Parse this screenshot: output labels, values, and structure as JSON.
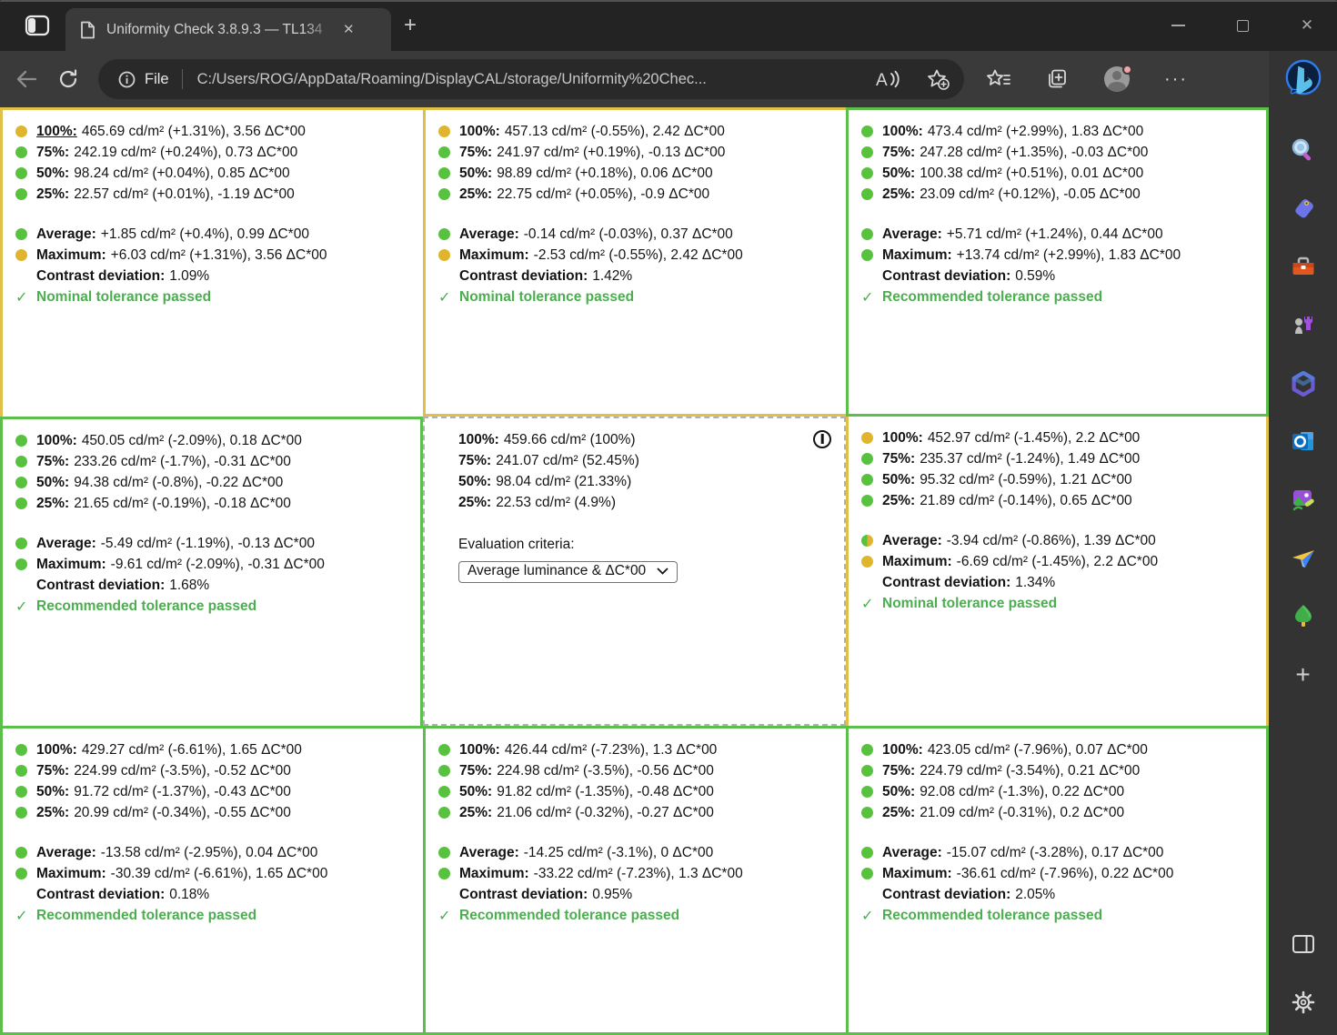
{
  "window": {
    "tab_title": "Uniformity Check 3.8.9.3 — TL134",
    "new_tab_label": "+",
    "controls": [
      "minimize",
      "maximize",
      "close"
    ]
  },
  "address_bar": {
    "scheme_label": "File",
    "url": "C:/Users/ROG/AppData/Roaming/DisplayCAL/storage/Uniformity%20Chec...",
    "more_options_glyph": "···"
  },
  "icons": {
    "titlebar": [
      "tab-workspaces-icon",
      "page-favicon-icon",
      "tab-close-icon",
      "new-tab-icon"
    ],
    "toolbar": [
      "back-icon",
      "refresh-icon",
      "info-icon",
      "read-aloud-icon",
      "add-favorite-icon",
      "favorites-icon",
      "collections-icon",
      "profile-avatar",
      "more-options-icon"
    ],
    "sidebar": [
      "bing-copilot-icon",
      "search-icon",
      "shopping-tag-icon",
      "toolbox-icon",
      "games-icon",
      "microsoft-365-icon",
      "outlook-icon",
      "image-creator-icon",
      "drop-icon",
      "tree-icon",
      "add-sidebar-item-icon",
      "sidebar-panel-icon",
      "settings-gear-icon"
    ]
  },
  "colors": {
    "tolerance_green": "#5CBF4C",
    "tolerance_yellow": "#E0C04A",
    "dot_green": "#58C23E",
    "dot_yellow": "#E0B52E",
    "status_green": "#4BAE4F"
  },
  "report": {
    "unit": "cd/m²",
    "evaluation": {
      "label": "Evaluation criteria:",
      "selected": "Average luminance & ΔC*00"
    },
    "panels": [
      {
        "position": "top-left",
        "border_color": "yellow",
        "reference": false,
        "measurements": [
          {
            "dot": "yellow",
            "label": "100%:",
            "text": "465.69 cd/m² (+1.31%), 3.56 ΔC*00",
            "underline": true
          },
          {
            "dot": "green",
            "label": "75%:",
            "text": "242.19 cd/m² (+0.24%), 0.73 ΔC*00"
          },
          {
            "dot": "green",
            "label": "50%:",
            "text": "98.24 cd/m² (+0.04%), 0.85 ΔC*00"
          },
          {
            "dot": "green",
            "label": "25%:",
            "text": "22.57 cd/m² (+0.01%), -1.19 ΔC*00"
          }
        ],
        "summary": [
          {
            "dot": "green",
            "label": "Average:",
            "text": "+1.85 cd/m² (+0.4%), 0.99 ΔC*00"
          },
          {
            "dot": "yellow",
            "label": "Maximum:",
            "text": "+6.03 cd/m² (+1.31%), 3.56 ΔC*00"
          },
          {
            "dot": null,
            "label": "Contrast deviation:",
            "text": "1.09%"
          }
        ],
        "status": "Nominal tolerance passed"
      },
      {
        "position": "top-center",
        "border_color": "yellow",
        "reference": false,
        "measurements": [
          {
            "dot": "yellow",
            "label": "100%:",
            "text": "457.13 cd/m² (-0.55%), 2.42 ΔC*00"
          },
          {
            "dot": "green",
            "label": "75%:",
            "text": "241.97 cd/m² (+0.19%), -0.13 ΔC*00"
          },
          {
            "dot": "green",
            "label": "50%:",
            "text": "98.89 cd/m² (+0.18%), 0.06 ΔC*00"
          },
          {
            "dot": "green",
            "label": "25%:",
            "text": "22.75 cd/m² (+0.05%), -0.9 ΔC*00"
          }
        ],
        "summary": [
          {
            "dot": "green",
            "label": "Average:",
            "text": "-0.14 cd/m² (-0.03%), 0.37 ΔC*00"
          },
          {
            "dot": "yellow",
            "label": "Maximum:",
            "text": "-2.53 cd/m² (-0.55%), 2.42 ΔC*00"
          },
          {
            "dot": null,
            "label": "Contrast deviation:",
            "text": "1.42%"
          }
        ],
        "status": "Nominal tolerance passed"
      },
      {
        "position": "top-right",
        "border_color": "green",
        "reference": false,
        "measurements": [
          {
            "dot": "green",
            "label": "100%:",
            "text": "473.4 cd/m² (+2.99%), 1.83 ΔC*00"
          },
          {
            "dot": "green",
            "label": "75%:",
            "text": "247.28 cd/m² (+1.35%), -0.03 ΔC*00"
          },
          {
            "dot": "green",
            "label": "50%:",
            "text": "100.38 cd/m² (+0.51%), 0.01 ΔC*00"
          },
          {
            "dot": "green",
            "label": "25%:",
            "text": "23.09 cd/m² (+0.12%), -0.05 ΔC*00"
          }
        ],
        "summary": [
          {
            "dot": "green",
            "label": "Average:",
            "text": "+5.71 cd/m² (+1.24%), 0.44 ΔC*00"
          },
          {
            "dot": "green",
            "label": "Maximum:",
            "text": "+13.74 cd/m² (+2.99%), 1.83 ΔC*00"
          },
          {
            "dot": null,
            "label": "Contrast deviation:",
            "text": "0.59%"
          }
        ],
        "status": "Recommended tolerance passed"
      },
      {
        "position": "middle-left",
        "border_color": "green",
        "reference": false,
        "measurements": [
          {
            "dot": "green",
            "label": "100%:",
            "text": "450.05 cd/m² (-2.09%), 0.18 ΔC*00"
          },
          {
            "dot": "green",
            "label": "75%:",
            "text": "233.26 cd/m² (-1.7%), -0.31 ΔC*00"
          },
          {
            "dot": "green",
            "label": "50%:",
            "text": "94.38 cd/m² (-0.8%), -0.22 ΔC*00"
          },
          {
            "dot": "green",
            "label": "25%:",
            "text": "21.65 cd/m² (-0.19%), -0.18 ΔC*00"
          }
        ],
        "summary": [
          {
            "dot": "green",
            "label": "Average:",
            "text": "-5.49 cd/m² (-1.19%), -0.13 ΔC*00"
          },
          {
            "dot": "green",
            "label": "Maximum:",
            "text": "-9.61 cd/m² (-2.09%), -0.31 ΔC*00"
          },
          {
            "dot": null,
            "label": "Contrast deviation:",
            "text": "1.68%"
          }
        ],
        "status": "Recommended tolerance passed"
      },
      {
        "position": "center",
        "border_color": "dashed",
        "reference": true,
        "measurements": [
          {
            "dot": null,
            "label": "100%:",
            "text": "459.66 cd/m² (100%)"
          },
          {
            "dot": null,
            "label": "75%:",
            "text": "241.07 cd/m² (52.45%)"
          },
          {
            "dot": null,
            "label": "50%:",
            "text": "98.04 cd/m² (21.33%)"
          },
          {
            "dot": null,
            "label": "25%:",
            "text": "22.53 cd/m² (4.9%)"
          }
        ],
        "summary": [],
        "status": null
      },
      {
        "position": "middle-right",
        "border_color": "yellow",
        "reference": false,
        "measurements": [
          {
            "dot": "yellow",
            "label": "100%:",
            "text": "452.97 cd/m² (-1.45%), 2.2 ΔC*00"
          },
          {
            "dot": "green",
            "label": "75%:",
            "text": "235.37 cd/m² (-1.24%), 1.49 ΔC*00"
          },
          {
            "dot": "green",
            "label": "50%:",
            "text": "95.32 cd/m² (-0.59%), 1.21 ΔC*00"
          },
          {
            "dot": "green",
            "label": "25%:",
            "text": "21.89 cd/m² (-0.14%), 0.65 ΔC*00"
          }
        ],
        "summary": [
          {
            "dot": "green-yellow",
            "label": "Average:",
            "text": "-3.94 cd/m² (-0.86%), 1.39 ΔC*00"
          },
          {
            "dot": "yellow",
            "label": "Maximum:",
            "text": "-6.69 cd/m² (-1.45%), 2.2 ΔC*00"
          },
          {
            "dot": null,
            "label": "Contrast deviation:",
            "text": "1.34%"
          }
        ],
        "status": "Nominal tolerance passed"
      },
      {
        "position": "bottom-left",
        "border_color": "green",
        "reference": false,
        "measurements": [
          {
            "dot": "green",
            "label": "100%:",
            "text": "429.27 cd/m² (-6.61%), 1.65 ΔC*00"
          },
          {
            "dot": "green",
            "label": "75%:",
            "text": "224.99 cd/m² (-3.5%), -0.52 ΔC*00"
          },
          {
            "dot": "green",
            "label": "50%:",
            "text": "91.72 cd/m² (-1.37%), -0.43 ΔC*00"
          },
          {
            "dot": "green",
            "label": "25%:",
            "text": "20.99 cd/m² (-0.34%), -0.55 ΔC*00"
          }
        ],
        "summary": [
          {
            "dot": "green",
            "label": "Average:",
            "text": "-13.58 cd/m² (-2.95%), 0.04 ΔC*00"
          },
          {
            "dot": "green",
            "label": "Maximum:",
            "text": "-30.39 cd/m² (-6.61%), 1.65 ΔC*00"
          },
          {
            "dot": null,
            "label": "Contrast deviation:",
            "text": "0.18%"
          }
        ],
        "status": "Recommended tolerance passed"
      },
      {
        "position": "bottom-center",
        "border_color": "green",
        "reference": false,
        "measurements": [
          {
            "dot": "green",
            "label": "100%:",
            "text": "426.44 cd/m² (-7.23%), 1.3 ΔC*00"
          },
          {
            "dot": "green",
            "label": "75%:",
            "text": "224.98 cd/m² (-3.5%), -0.56 ΔC*00"
          },
          {
            "dot": "green",
            "label": "50%:",
            "text": "91.82 cd/m² (-1.35%), -0.48 ΔC*00"
          },
          {
            "dot": "green",
            "label": "25%:",
            "text": "21.06 cd/m² (-0.32%), -0.27 ΔC*00"
          }
        ],
        "summary": [
          {
            "dot": "green",
            "label": "Average:",
            "text": "-14.25 cd/m² (-3.1%), 0 ΔC*00"
          },
          {
            "dot": "green",
            "label": "Maximum:",
            "text": "-33.22 cd/m² (-7.23%), 1.3 ΔC*00"
          },
          {
            "dot": null,
            "label": "Contrast deviation:",
            "text": "0.95%"
          }
        ],
        "status": "Recommended tolerance passed"
      },
      {
        "position": "bottom-right",
        "border_color": "green",
        "reference": false,
        "measurements": [
          {
            "dot": "green",
            "label": "100%:",
            "text": "423.05 cd/m² (-7.96%), 0.07 ΔC*00"
          },
          {
            "dot": "green",
            "label": "75%:",
            "text": "224.79 cd/m² (-3.54%), 0.21 ΔC*00"
          },
          {
            "dot": "green",
            "label": "50%:",
            "text": "92.08 cd/m² (-1.3%), 0.22 ΔC*00"
          },
          {
            "dot": "green",
            "label": "25%:",
            "text": "21.09 cd/m² (-0.31%), 0.2 ΔC*00"
          }
        ],
        "summary": [
          {
            "dot": "green",
            "label": "Average:",
            "text": "-15.07 cd/m² (-3.28%), 0.17 ΔC*00"
          },
          {
            "dot": "green",
            "label": "Maximum:",
            "text": "-36.61 cd/m² (-7.96%), 0.22 ΔC*00"
          },
          {
            "dot": null,
            "label": "Contrast deviation:",
            "text": "2.05%"
          }
        ],
        "status": "Recommended tolerance passed"
      }
    ]
  }
}
